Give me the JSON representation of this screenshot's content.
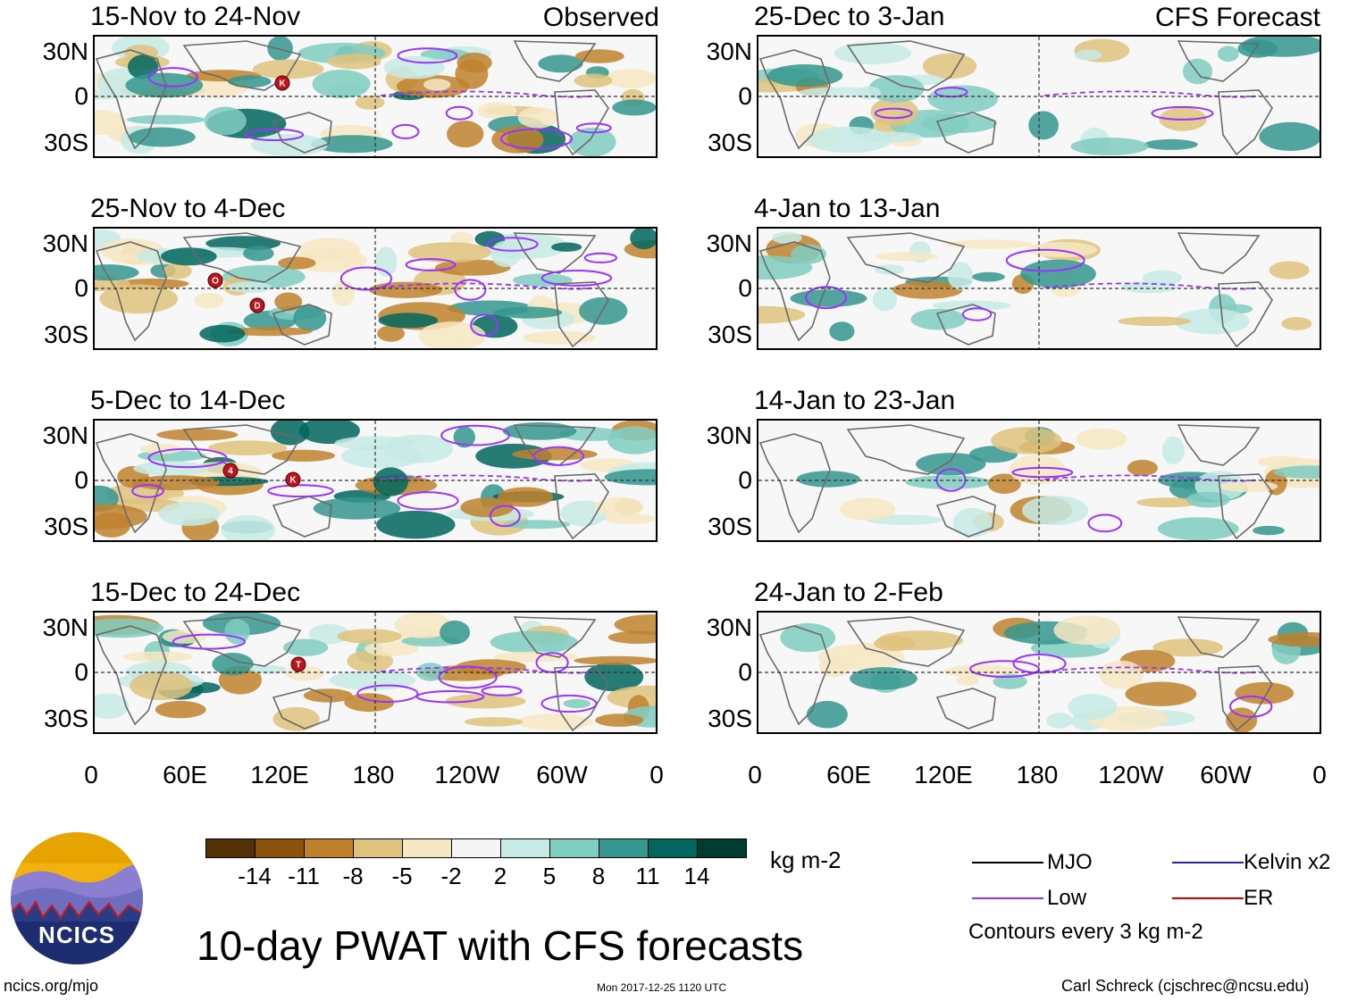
{
  "column_labels": {
    "left": "Observed",
    "right": "CFS Forecast"
  },
  "colorbar": {
    "colors": [
      "#543005",
      "#8c510a",
      "#bf812d",
      "#dfc27d",
      "#f6e8c3",
      "#f5f5f5",
      "#c7eae5",
      "#80cdc1",
      "#35978f",
      "#01665e",
      "#003c30"
    ],
    "labels": [
      "-14",
      "-11",
      "-8",
      "-5",
      "-2",
      "2",
      "5",
      "8",
      "11",
      "14"
    ],
    "units": "kg m-2"
  },
  "legend": {
    "items": [
      {
        "label": "MJO",
        "color": "#000000"
      },
      {
        "label": "Kelvin x2",
        "color": "#2222cc"
      },
      {
        "label": "Low",
        "color": "#9933ff"
      },
      {
        "label": "ER",
        "color": "#dd0000"
      }
    ],
    "contours_note": "Contours every 3 kg m-2"
  },
  "main_title": "10-day PWAT with CFS forecasts",
  "logo_text": "NCICS",
  "footer": {
    "url": "ncics.org/mjo",
    "timestamp": "Mon 2017-12-25 1120 UTC",
    "credit": "Carl Schreck (cjschrec@ncsu.edu)"
  },
  "chart_data": {
    "type": "heatmap",
    "variable": "10-day PWAT anomaly",
    "units": "kg m-2",
    "lat_tick_labels": [
      "30N",
      "0",
      "30S"
    ],
    "lon_tick_labels": [
      "0",
      "60E",
      "120E",
      "180",
      "120W",
      "60W",
      "0"
    ],
    "panels": [
      {
        "column": "Observed",
        "title": "15-Nov to 24-Nov",
        "storms": [
          "K"
        ]
      },
      {
        "column": "Observed",
        "title": "25-Nov to 4-Dec",
        "storms": [
          "O",
          "D"
        ]
      },
      {
        "column": "Observed",
        "title": "5-Dec to 14-Dec",
        "storms": [
          "4",
          "K"
        ]
      },
      {
        "column": "Observed",
        "title": "15-Dec to 24-Dec",
        "storms": [
          "T"
        ]
      },
      {
        "column": "CFS Forecast",
        "title": "25-Dec to 3-Jan",
        "storms": []
      },
      {
        "column": "CFS Forecast",
        "title": "4-Jan to 13-Jan",
        "storms": []
      },
      {
        "column": "CFS Forecast",
        "title": "14-Jan to 23-Jan",
        "storms": []
      },
      {
        "column": "CFS Forecast",
        "title": "24-Jan to 2-Feb",
        "storms": []
      }
    ]
  }
}
